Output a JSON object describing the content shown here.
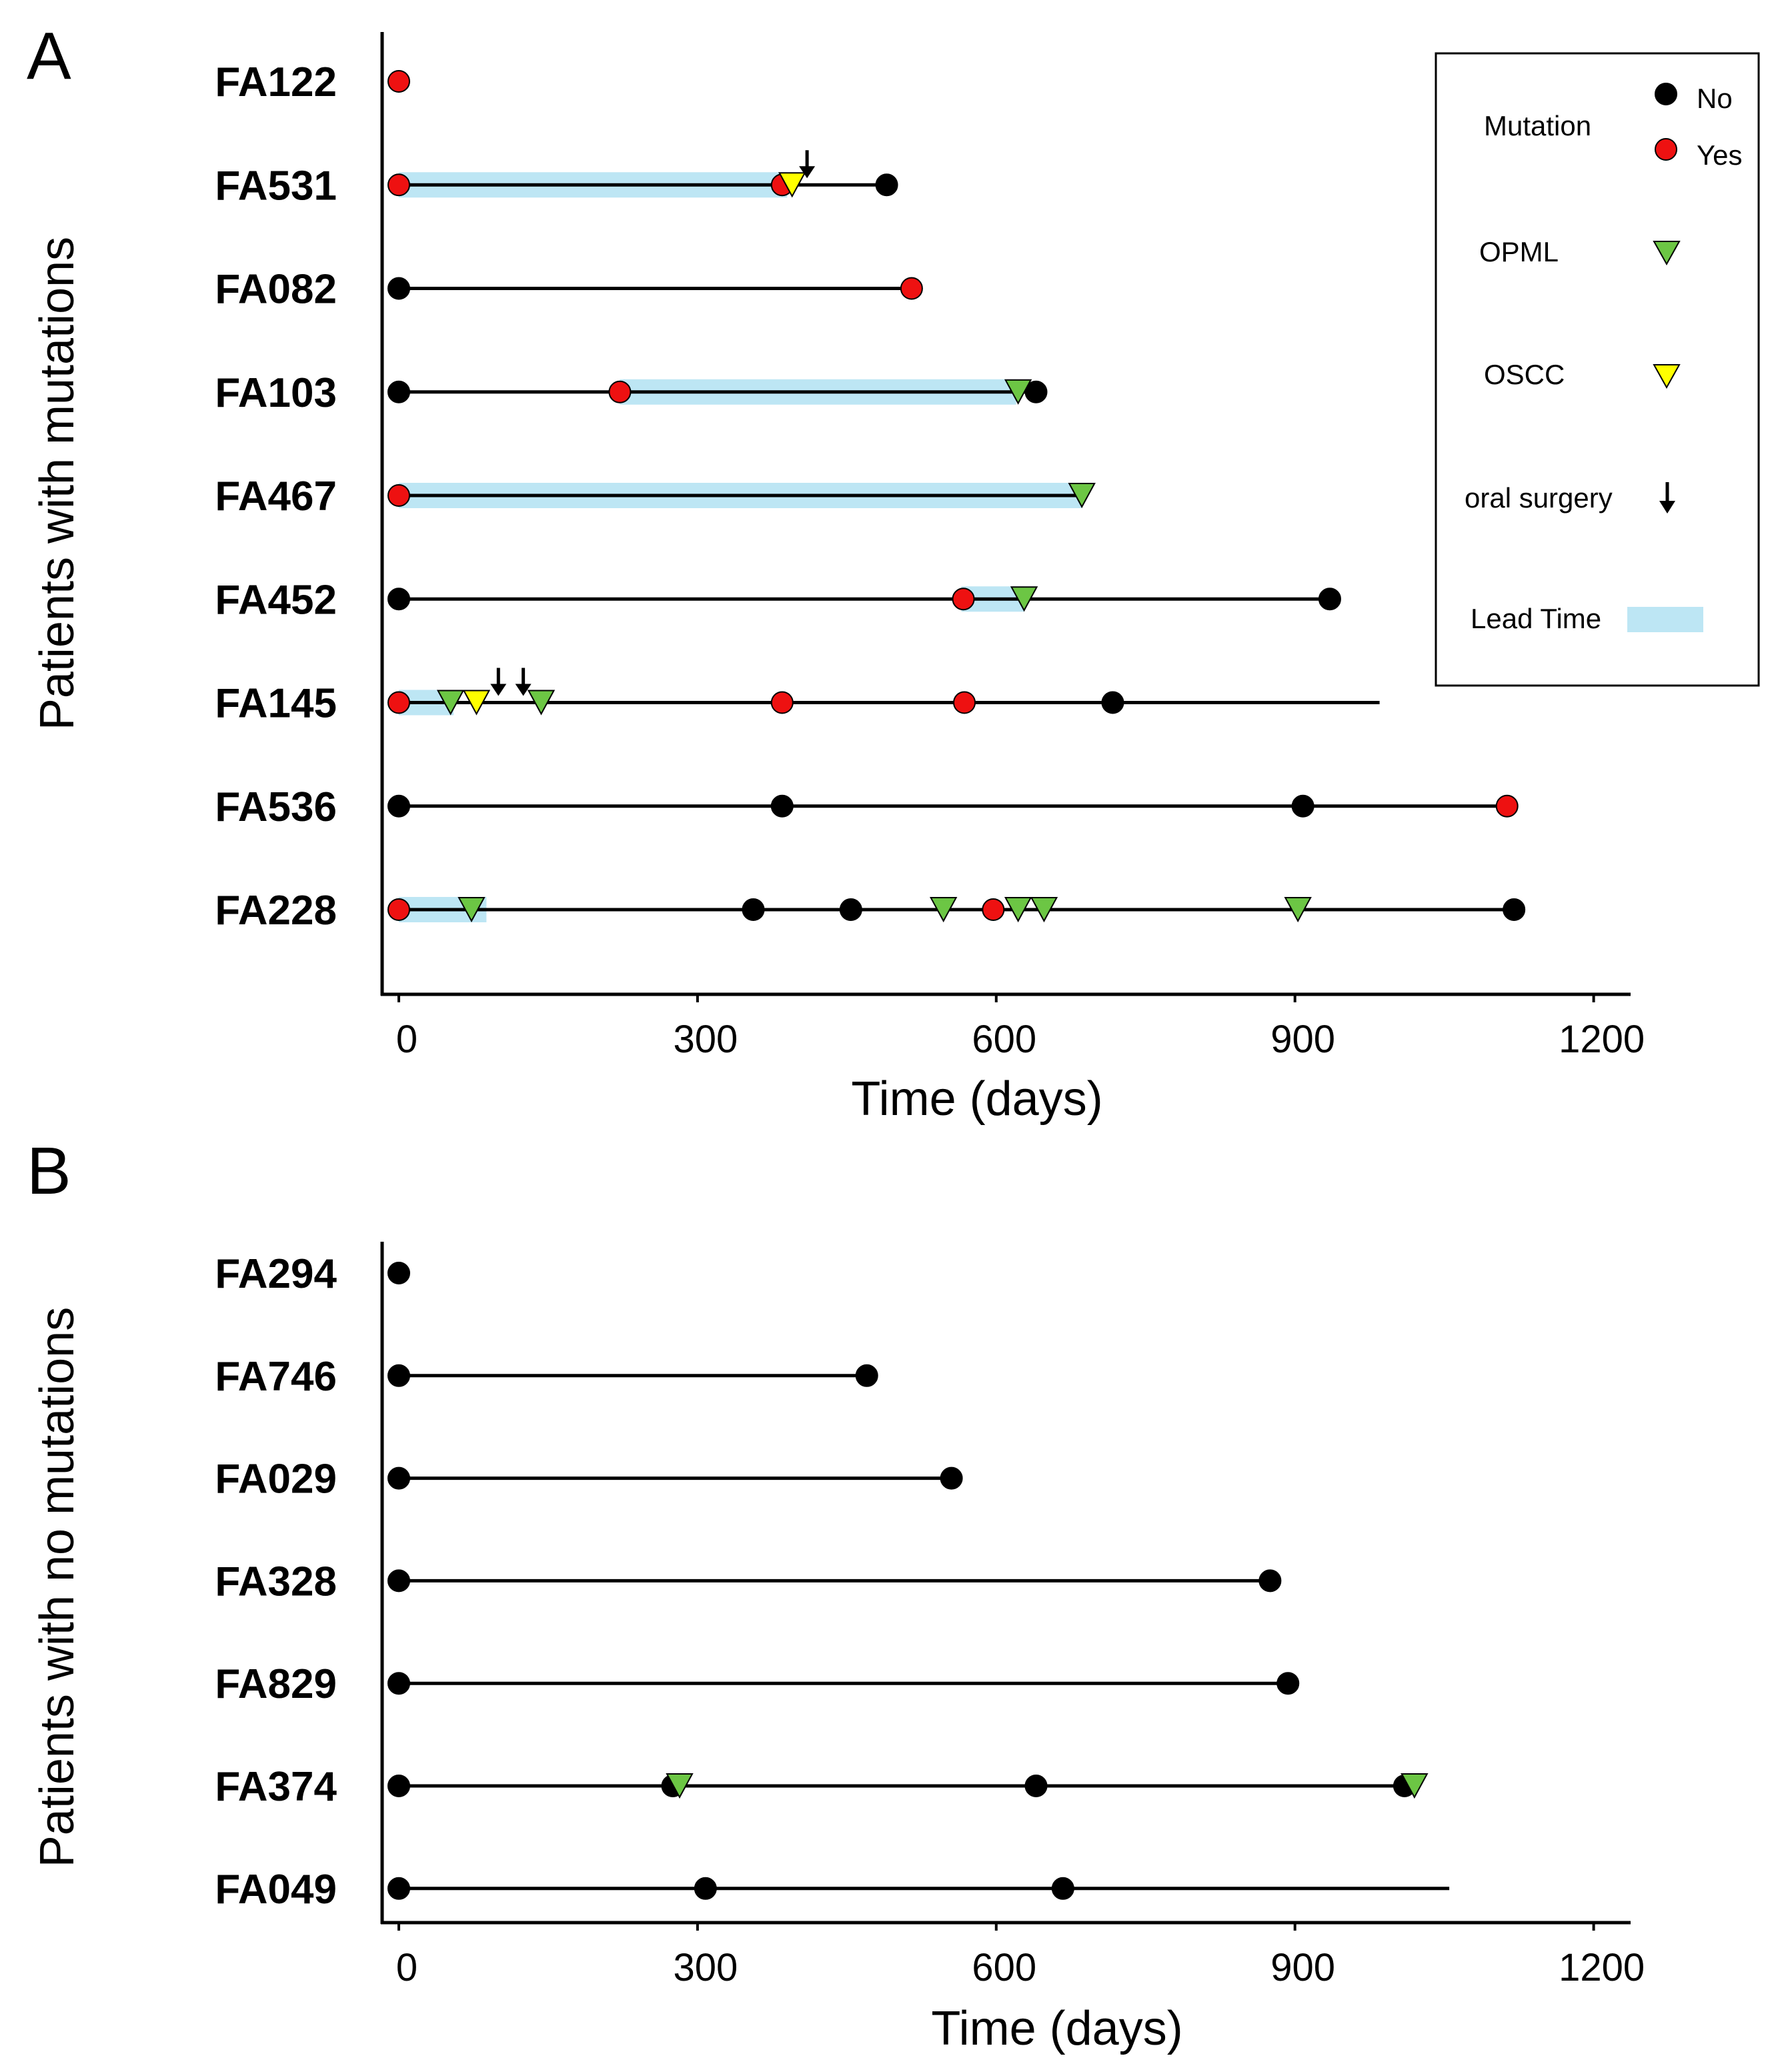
{
  "chart_data": [
    {
      "type": "timeline",
      "panel_label": "A",
      "ylabel": "Patients with mutations",
      "xlabel": "Time (days)",
      "xlim": [
        -20,
        1230
      ],
      "xticks": [
        0,
        300,
        600,
        900,
        1200
      ],
      "legend": {
        "placement": "top-right",
        "mutation_label": "Mutation",
        "no_label": "No",
        "yes_label": "Yes",
        "opml_label": "OPML",
        "oscc_label": "OSCC",
        "surgery_label": "oral surgery",
        "lead_time_label": "Lead Time"
      },
      "patients": [
        {
          "id": "FA122",
          "line_end": null,
          "lead_time": [],
          "events": [
            {
              "type": "mutation_yes",
              "day": 0
            }
          ]
        },
        {
          "id": "FA531",
          "line_end": 490,
          "lead_time": [
            [
              0,
              390
            ]
          ],
          "events": [
            {
              "type": "mutation_yes",
              "day": 0
            },
            {
              "type": "mutation_yes",
              "day": 385
            },
            {
              "type": "oscc",
              "day": 395
            },
            {
              "type": "surgery",
              "day": 410
            },
            {
              "type": "mutation_no",
              "day": 490
            }
          ]
        },
        {
          "id": "FA082",
          "line_end": 515,
          "lead_time": [],
          "events": [
            {
              "type": "mutation_no",
              "day": 0
            },
            {
              "type": "mutation_yes",
              "day": 515
            }
          ]
        },
        {
          "id": "FA103",
          "line_end": 640,
          "lead_time": [
            [
              222,
              620
            ]
          ],
          "events": [
            {
              "type": "mutation_no",
              "day": 0
            },
            {
              "type": "mutation_yes",
              "day": 222
            },
            {
              "type": "opml",
              "day": 622
            },
            {
              "type": "mutation_no",
              "day": 640
            }
          ]
        },
        {
          "id": "FA467",
          "line_end": 686,
          "lead_time": [
            [
              0,
              686
            ]
          ],
          "events": [
            {
              "type": "mutation_yes",
              "day": 0
            },
            {
              "type": "opml",
              "day": 686
            }
          ]
        },
        {
          "id": "FA452",
          "line_end": 935,
          "lead_time": [
            [
              565,
              628
            ]
          ],
          "events": [
            {
              "type": "mutation_no",
              "day": 0
            },
            {
              "type": "mutation_yes",
              "day": 567
            },
            {
              "type": "opml",
              "day": 628
            },
            {
              "type": "mutation_no",
              "day": 935
            }
          ]
        },
        {
          "id": "FA145",
          "line_end": 985,
          "lead_time": [
            [
              0,
              55
            ]
          ],
          "events": [
            {
              "type": "mutation_yes",
              "day": 0
            },
            {
              "type": "opml",
              "day": 52
            },
            {
              "type": "oscc",
              "day": 78
            },
            {
              "type": "surgery",
              "day": 100
            },
            {
              "type": "surgery",
              "day": 125
            },
            {
              "type": "opml",
              "day": 143
            },
            {
              "type": "mutation_yes",
              "day": 385
            },
            {
              "type": "mutation_yes",
              "day": 568
            },
            {
              "type": "mutation_no",
              "day": 717
            }
          ]
        },
        {
          "id": "FA536",
          "line_end": 1113,
          "lead_time": [],
          "events": [
            {
              "type": "mutation_no",
              "day": 0
            },
            {
              "type": "mutation_no",
              "day": 385
            },
            {
              "type": "mutation_no",
              "day": 908
            },
            {
              "type": "mutation_yes",
              "day": 1113
            }
          ]
        },
        {
          "id": "FA228",
          "line_end": 1120,
          "lead_time": [
            [
              0,
              88
            ]
          ],
          "events": [
            {
              "type": "mutation_yes",
              "day": 0
            },
            {
              "type": "opml",
              "day": 73
            },
            {
              "type": "mutation_no",
              "day": 356
            },
            {
              "type": "mutation_no",
              "day": 454
            },
            {
              "type": "opml",
              "day": 547
            },
            {
              "type": "mutation_yes",
              "day": 597
            },
            {
              "type": "opml",
              "day": 622
            },
            {
              "type": "opml",
              "day": 648
            },
            {
              "type": "opml",
              "day": 903
            },
            {
              "type": "mutation_no",
              "day": 1120
            }
          ]
        }
      ]
    },
    {
      "type": "timeline",
      "panel_label": "B",
      "ylabel": "Patients with no mutations",
      "xlabel": "Time (days)",
      "xlim": [
        -20,
        1230
      ],
      "xticks": [
        0,
        300,
        600,
        900,
        1200
      ],
      "patients": [
        {
          "id": "FA294",
          "line_end": null,
          "lead_time": [],
          "events": [
            {
              "type": "mutation_no",
              "day": 0
            }
          ]
        },
        {
          "id": "FA746",
          "line_end": 470,
          "lead_time": [],
          "events": [
            {
              "type": "mutation_no",
              "day": 0
            },
            {
              "type": "mutation_no",
              "day": 470
            }
          ]
        },
        {
          "id": "FA029",
          "line_end": 555,
          "lead_time": [],
          "events": [
            {
              "type": "mutation_no",
              "day": 0
            },
            {
              "type": "mutation_no",
              "day": 555
            }
          ]
        },
        {
          "id": "FA328",
          "line_end": 875,
          "lead_time": [],
          "events": [
            {
              "type": "mutation_no",
              "day": 0
            },
            {
              "type": "mutation_no",
              "day": 875
            }
          ]
        },
        {
          "id": "FA829",
          "line_end": 893,
          "lead_time": [],
          "events": [
            {
              "type": "mutation_no",
              "day": 0
            },
            {
              "type": "mutation_no",
              "day": 893
            }
          ]
        },
        {
          "id": "FA374",
          "line_end": 1020,
          "lead_time": [],
          "events": [
            {
              "type": "mutation_no",
              "day": 0
            },
            {
              "type": "mutation_no",
              "day": 275
            },
            {
              "type": "opml",
              "day": 282
            },
            {
              "type": "mutation_no",
              "day": 640
            },
            {
              "type": "mutation_no",
              "day": 1010
            },
            {
              "type": "opml",
              "day": 1020
            }
          ]
        },
        {
          "id": "FA049",
          "line_end": 1055,
          "lead_time": [],
          "events": [
            {
              "type": "mutation_no",
              "day": 0
            },
            {
              "type": "mutation_no",
              "day": 308
            },
            {
              "type": "mutation_no",
              "day": 667
            }
          ]
        }
      ]
    }
  ],
  "colors": {
    "mutation_no": "#000000",
    "mutation_yes": "#ee1111",
    "opml": "#6cc644",
    "oscc": "#ffff00",
    "lead_time": "#bde6f4",
    "line": "#000000"
  }
}
